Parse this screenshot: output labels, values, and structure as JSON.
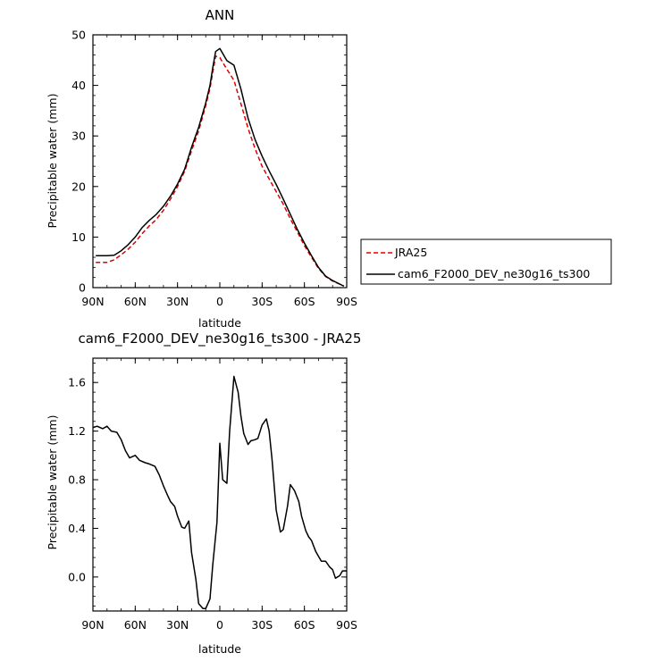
{
  "chart_data": [
    {
      "type": "line",
      "title": "ANN",
      "xlabel": "latitude",
      "ylabel": "Precipitable water (mm)",
      "ylim": [
        0,
        50
      ],
      "yticks": [
        "0",
        "10",
        "20",
        "30",
        "40",
        "50"
      ],
      "xticks": [
        "90N",
        "60N",
        "30N",
        "0",
        "30S",
        "60S",
        "90S"
      ],
      "xlim": [
        90,
        -90
      ],
      "legend": {
        "placement": "right",
        "entries": [
          {
            "name": "JRA25",
            "color": "#e00000",
            "style": "dashed"
          },
          {
            "name": "cam6_F2000_DEV_ne30g16_ts300",
            "color": "#000000",
            "style": "solid"
          }
        ]
      },
      "series": [
        {
          "name": "JRA25",
          "color": "#e00000",
          "style": "dashed",
          "x": [
            88,
            80,
            75,
            70,
            65,
            60,
            55,
            50,
            45,
            40,
            35,
            30,
            25,
            20,
            15,
            10,
            7,
            5,
            3,
            0,
            -5,
            -10,
            -15,
            -20,
            -25,
            -30,
            -35,
            -40,
            -45,
            -50,
            -55,
            -60,
            -65,
            -70,
            -75,
            -80,
            -85,
            -88
          ],
          "y": [
            5.0,
            5.0,
            5.5,
            6.5,
            7.6,
            9.0,
            10.7,
            12.2,
            13.5,
            15.3,
            17.5,
            20.0,
            23.0,
            27.1,
            31.0,
            36.0,
            39.4,
            42.6,
            45.8,
            45.5,
            43.2,
            41.0,
            36.3,
            31.5,
            27.5,
            24.0,
            21.5,
            19.0,
            16.5,
            13.6,
            11.0,
            8.3,
            6.0,
            3.8,
            2.2,
            1.3,
            0.7,
            0.3
          ]
        },
        {
          "name": "cam6_F2000_DEV_ne30g16_ts300",
          "color": "#000000",
          "style": "solid",
          "x": [
            88,
            80,
            75,
            70,
            65,
            60,
            55,
            50,
            45,
            40,
            35,
            30,
            25,
            20,
            15,
            10,
            7,
            5,
            3,
            0,
            -5,
            -10,
            -15,
            -20,
            -25,
            -30,
            -35,
            -40,
            -45,
            -50,
            -55,
            -60,
            -65,
            -70,
            -75,
            -80,
            -85,
            -88
          ],
          "y": [
            6.3,
            6.3,
            6.4,
            7.3,
            8.5,
            10.0,
            11.9,
            13.3,
            14.5,
            16.1,
            18.1,
            20.5,
            23.4,
            27.8,
            31.7,
            36.5,
            40.0,
            43.5,
            46.7,
            47.3,
            44.9,
            44.0,
            39.2,
            33.5,
            29.3,
            26.0,
            23.1,
            20.4,
            17.5,
            14.5,
            11.5,
            8.8,
            6.3,
            4.0,
            2.3,
            1.4,
            0.7,
            0.3
          ]
        }
      ]
    },
    {
      "type": "line",
      "title": "cam6_F2000_DEV_ne30g16_ts300 - JRA25",
      "xlabel": "latitude",
      "ylabel": "Precipitable water (mm)",
      "ylim": [
        -0.28,
        1.8
      ],
      "yticks": [
        "0.0",
        "0.4",
        "0.8",
        "1.2",
        "1.6"
      ],
      "ytick_values": [
        0,
        0.4,
        0.8,
        1.2,
        1.6
      ],
      "xticks": [
        "90N",
        "60N",
        "30N",
        "0",
        "30S",
        "60S",
        "90S"
      ],
      "xlim": [
        90,
        -90
      ],
      "series": [
        {
          "name": "",
          "color": "#000000",
          "style": "solid",
          "x": [
            90,
            87,
            83,
            80,
            77,
            73,
            70,
            67,
            64,
            60,
            57,
            53,
            50,
            46,
            43,
            40,
            37,
            35,
            32,
            30,
            27,
            25,
            22,
            20,
            17,
            15,
            12,
            10,
            7,
            5,
            2,
            0,
            -2,
            -5,
            -7,
            -10,
            -13,
            -15,
            -17,
            -20,
            -22,
            -25,
            -27,
            -30,
            -33,
            -35,
            -37,
            -40,
            -43,
            -45,
            -48,
            -50,
            -53,
            -56,
            -58,
            -61,
            -63,
            -65,
            -68,
            -70,
            -72,
            -75,
            -78,
            -80,
            -82,
            -85,
            -87,
            -90
          ],
          "y": [
            1.23,
            1.24,
            1.22,
            1.24,
            1.2,
            1.19,
            1.13,
            1.04,
            0.98,
            1.0,
            0.96,
            0.94,
            0.93,
            0.91,
            0.84,
            0.75,
            0.67,
            0.62,
            0.58,
            0.5,
            0.41,
            0.4,
            0.46,
            0.2,
            -0.02,
            -0.22,
            -0.26,
            -0.26,
            -0.18,
            0.1,
            0.45,
            1.1,
            0.8,
            0.77,
            1.2,
            1.65,
            1.52,
            1.32,
            1.18,
            1.09,
            1.12,
            1.13,
            1.14,
            1.25,
            1.3,
            1.2,
            0.97,
            0.55,
            0.37,
            0.39,
            0.58,
            0.76,
            0.71,
            0.62,
            0.5,
            0.38,
            0.33,
            0.3,
            0.21,
            0.17,
            0.13,
            0.13,
            0.08,
            0.06,
            -0.01,
            0.01,
            0.05,
            0.05
          ]
        }
      ]
    }
  ]
}
